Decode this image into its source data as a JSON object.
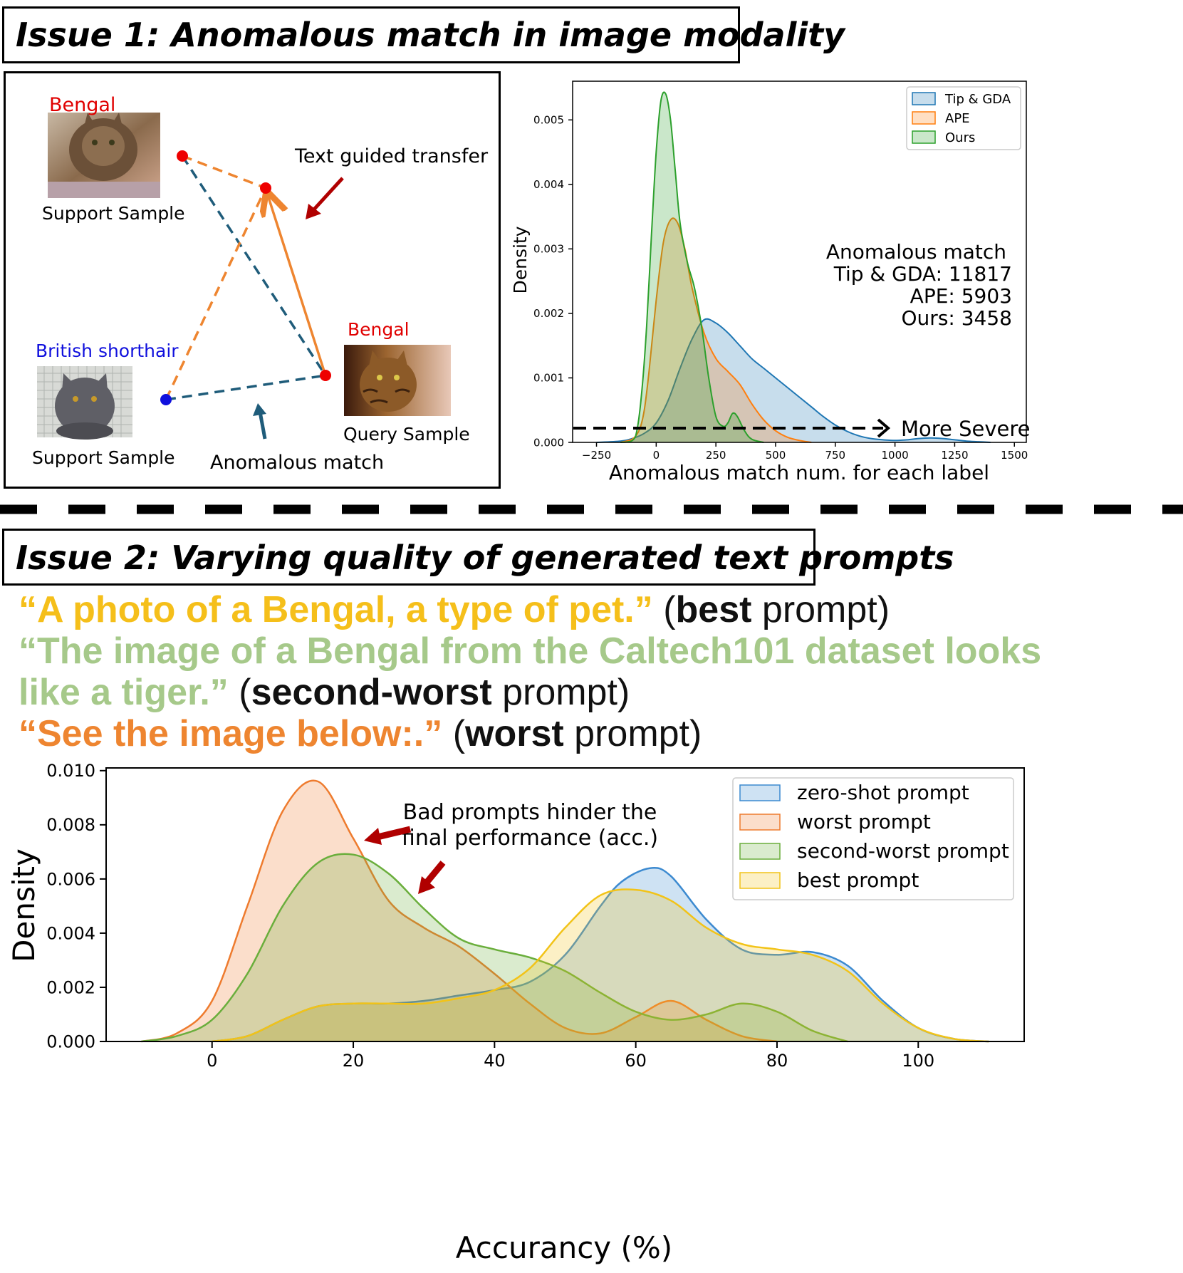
{
  "issue1": {
    "title": "Issue 1: Anomalous match in image modality",
    "diagram": {
      "support_top_label": "Bengal",
      "support_top_caption": "Support Sample",
      "support_bottom_label": "British shorthair",
      "support_bottom_caption": "Support Sample",
      "query_label": "Bengal",
      "query_caption": "Query Sample",
      "text_transfer_label": "Text guided transfer",
      "anomalous_label": "Anomalous match"
    },
    "chart": {
      "ylabel": "Density",
      "xlabel": "Anomalous match num. for each label",
      "annotation_lines": [
        "Anomalous match",
        "Tip & GDA: 11817",
        "APE: 5903",
        "Ours: 3458"
      ],
      "severity_label": "More Severe"
    }
  },
  "issue2": {
    "title": "Issue 2: Varying quality of generated text prompts",
    "prompts": [
      {
        "quote": "“A photo of a Bengal, a type of pet.”",
        "open": " (",
        "bold": "best",
        "rest": " prompt)",
        "color": "#F5BF1A"
      },
      {
        "quote": "“The image of a Bengal from the Caltech101 dataset looks",
        "open": "",
        "bold": "",
        "rest": "",
        "color": "#A6C98A"
      },
      {
        "quote": "like a tiger.”",
        "open": " (",
        "bold": "second-worst",
        "rest": " prompt)",
        "color": "#A6C98A"
      },
      {
        "quote": "“See the image below:.”",
        "open": " (",
        "bold": "worst",
        "rest": " prompt)",
        "color": "#EE8530"
      }
    ],
    "chart": {
      "ylabel": "Density",
      "xlabel": "Accurancy (%)",
      "annotation_lines": [
        "Bad prompts hinder the",
        "final performance (acc.)"
      ]
    }
  },
  "chart_data": [
    {
      "type": "area",
      "subtype": "kde",
      "ylabel": "Density",
      "xlabel": "Anomalous match num. for each label",
      "xlim": [
        -350,
        1550
      ],
      "ylim": [
        0,
        0.0056
      ],
      "xticks": [
        -250,
        0,
        250,
        500,
        750,
        1000,
        1250,
        1500
      ],
      "yticks": [
        0.0,
        0.001,
        0.002,
        0.003,
        0.004,
        0.005
      ],
      "xtick_labels": [
        "−250",
        "0",
        "250",
        "500",
        "750",
        "1000",
        "1250",
        "1500"
      ],
      "ytick_labels": [
        "0.000",
        "0.001",
        "0.002",
        "0.003",
        "0.004",
        "0.005"
      ],
      "legend_position": "top-right",
      "series": [
        {
          "name": "Tip & GDA",
          "color": "#1F77B4",
          "x": [
            -250,
            -150,
            -100,
            -50,
            0,
            50,
            100,
            150,
            200,
            250,
            300,
            350,
            400,
            450,
            500,
            550,
            600,
            650,
            700,
            750,
            800,
            850,
            900,
            950,
            1000,
            1050,
            1100,
            1150,
            1200,
            1250,
            1300,
            1350,
            1400
          ],
          "y": [
            0.0,
            2e-05,
            6e-05,
            0.00014,
            0.0003,
            0.00065,
            0.00115,
            0.0016,
            0.0019,
            0.00185,
            0.0017,
            0.0015,
            0.0013,
            0.00115,
            0.001,
            0.00085,
            0.0007,
            0.00055,
            0.0004,
            0.00027,
            0.00017,
            0.0001,
            6e-05,
            4e-05,
            3e-05,
            4e-05,
            6e-05,
            7e-05,
            6e-05,
            4e-05,
            2e-05,
            1e-05,
            0.0
          ]
        },
        {
          "name": "APE",
          "color": "#FF7F0E",
          "x": [
            -150,
            -100,
            -70,
            -50,
            -30,
            0,
            30,
            60,
            90,
            120,
            150,
            200,
            250,
            300,
            350,
            400,
            450,
            500,
            550,
            600,
            650
          ],
          "y": [
            0.0,
            5e-05,
            0.0002,
            0.0005,
            0.0011,
            0.0022,
            0.0031,
            0.00345,
            0.0034,
            0.003,
            0.0024,
            0.0017,
            0.0013,
            0.0011,
            0.0009,
            0.0006,
            0.00035,
            0.00018,
            8e-05,
            3e-05,
            0.0
          ]
        },
        {
          "name": "Ours",
          "color": "#2CA02C",
          "x": [
            -150,
            -100,
            -80,
            -60,
            -40,
            -20,
            0,
            20,
            40,
            60,
            80,
            100,
            130,
            160,
            190,
            220,
            250,
            280,
            300,
            320,
            340,
            370,
            400,
            450
          ],
          "y": [
            0.0,
            3e-05,
            0.0002,
            0.0008,
            0.0018,
            0.0032,
            0.0045,
            0.0053,
            0.0054,
            0.005,
            0.0042,
            0.0034,
            0.0028,
            0.0024,
            0.0018,
            0.001,
            0.0004,
            0.00025,
            0.0003,
            0.00045,
            0.0004,
            0.00018,
            5e-05,
            0.0
          ]
        }
      ]
    },
    {
      "type": "area",
      "subtype": "kde",
      "ylabel": "Density",
      "xlabel": "Accurancy (%)",
      "xlim": [
        -15,
        115
      ],
      "ylim": [
        0,
        0.0101
      ],
      "xticks": [
        0,
        20,
        40,
        60,
        80,
        100
      ],
      "yticks": [
        0.0,
        0.002,
        0.004,
        0.006,
        0.008,
        0.01
      ],
      "xtick_labels": [
        "0",
        "20",
        "40",
        "60",
        "80",
        "100"
      ],
      "ytick_labels": [
        "0.000",
        "0.002",
        "0.004",
        "0.006",
        "0.008",
        "0.010"
      ],
      "legend_position": "top-right",
      "series": [
        {
          "name": "zero-shot prompt",
          "color": "#3C8AD0",
          "x": [
            0,
            5,
            10,
            15,
            20,
            25,
            30,
            35,
            40,
            45,
            50,
            55,
            58,
            62,
            65,
            70,
            75,
            80,
            85,
            90,
            95,
            100,
            105,
            110
          ],
          "y": [
            0.0,
            0.0002,
            0.0008,
            0.0013,
            0.0014,
            0.0014,
            0.0015,
            0.0017,
            0.0019,
            0.0022,
            0.0032,
            0.005,
            0.0059,
            0.0064,
            0.0061,
            0.0045,
            0.0034,
            0.0032,
            0.0033,
            0.0028,
            0.0015,
            0.0005,
            0.0001,
            0.0
          ]
        },
        {
          "name": "worst prompt",
          "color": "#EE7B2E",
          "x": [
            -10,
            -5,
            0,
            5,
            10,
            15,
            20,
            25,
            30,
            35,
            40,
            45,
            50,
            55,
            60,
            65,
            70,
            75,
            80
          ],
          "y": [
            0.0,
            0.0003,
            0.0015,
            0.005,
            0.0085,
            0.0096,
            0.0075,
            0.0052,
            0.0042,
            0.0035,
            0.0025,
            0.0014,
            0.0005,
            0.0003,
            0.0009,
            0.0015,
            0.0008,
            0.0002,
            0.0
          ]
        },
        {
          "name": "second-worst prompt",
          "color": "#6AAE3C",
          "x": [
            -10,
            -5,
            0,
            5,
            10,
            15,
            20,
            25,
            30,
            35,
            40,
            45,
            50,
            55,
            60,
            65,
            70,
            75,
            80,
            85,
            90
          ],
          "y": [
            0.0,
            0.0002,
            0.0008,
            0.0025,
            0.005,
            0.0066,
            0.0069,
            0.0062,
            0.0049,
            0.0038,
            0.0034,
            0.0031,
            0.0026,
            0.0018,
            0.0011,
            0.0008,
            0.001,
            0.0014,
            0.0011,
            0.0004,
            0.0
          ]
        },
        {
          "name": "best prompt",
          "color": "#F2C318",
          "x": [
            0,
            5,
            10,
            15,
            20,
            25,
            30,
            35,
            40,
            45,
            50,
            55,
            60,
            65,
            70,
            75,
            80,
            85,
            90,
            95,
            100,
            105,
            110
          ],
          "y": [
            0.0,
            0.0002,
            0.0008,
            0.0013,
            0.0014,
            0.0014,
            0.0014,
            0.0016,
            0.0019,
            0.0027,
            0.0042,
            0.0054,
            0.0056,
            0.0052,
            0.0042,
            0.0036,
            0.0034,
            0.0032,
            0.0026,
            0.0014,
            0.0005,
            0.0001,
            0.0
          ]
        }
      ]
    }
  ]
}
